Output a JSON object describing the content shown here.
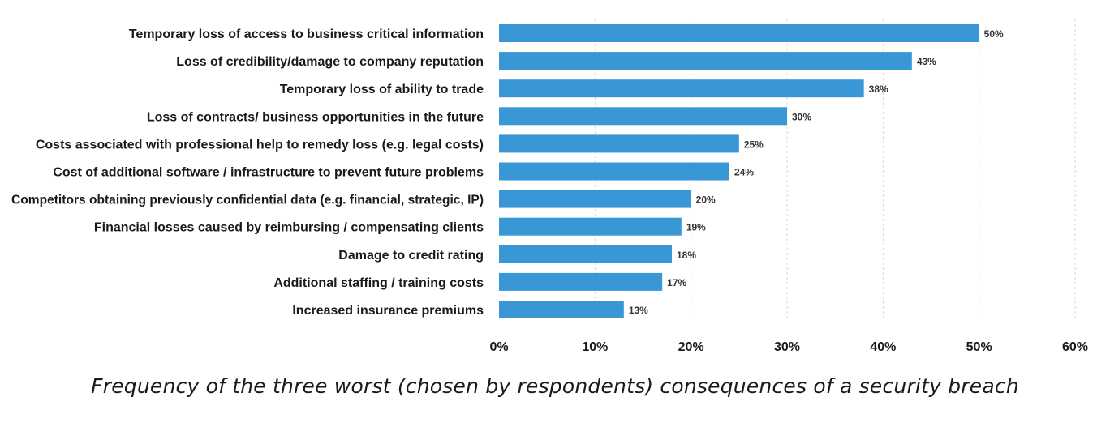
{
  "chart_data": {
    "type": "bar",
    "orientation": "horizontal",
    "caption": "Frequency of the three worst (chosen by respondents) consequences of a security breach",
    "categories": [
      "Temporary loss of access to business critical information",
      "Loss of credibility/damage to company reputation",
      "Temporary loss of ability to trade",
      "Loss of contracts/ business opportunities in the future",
      "Costs associated with professional help to remedy loss (e.g. legal costs)",
      "Cost of additional software / infrastructure to prevent future problems",
      "Competitors obtaining  previously confidential data (e.g. financial, strategic, IP)",
      "Financial losses caused by reimbursing / compensating clients",
      "Damage to credit rating",
      "Additional staffing / training costs",
      "Increased insurance premiums"
    ],
    "values": [
      50,
      43,
      38,
      30,
      25,
      24,
      20,
      19,
      18,
      17,
      13
    ],
    "value_labels": [
      "50%",
      "43%",
      "38%",
      "30%",
      "25%",
      "24%",
      "20%",
      "19%",
      "18%",
      "17%",
      "13%"
    ],
    "xlim": [
      0,
      60
    ],
    "x_ticks": [
      0,
      10,
      20,
      30,
      40,
      50,
      60
    ],
    "x_tick_labels": [
      "0%",
      "10%",
      "20%",
      "30%",
      "40%",
      "50%",
      "60%"
    ],
    "grid": "vertical-dashed",
    "bar_color": "#3a97d6",
    "legend": "none"
  }
}
